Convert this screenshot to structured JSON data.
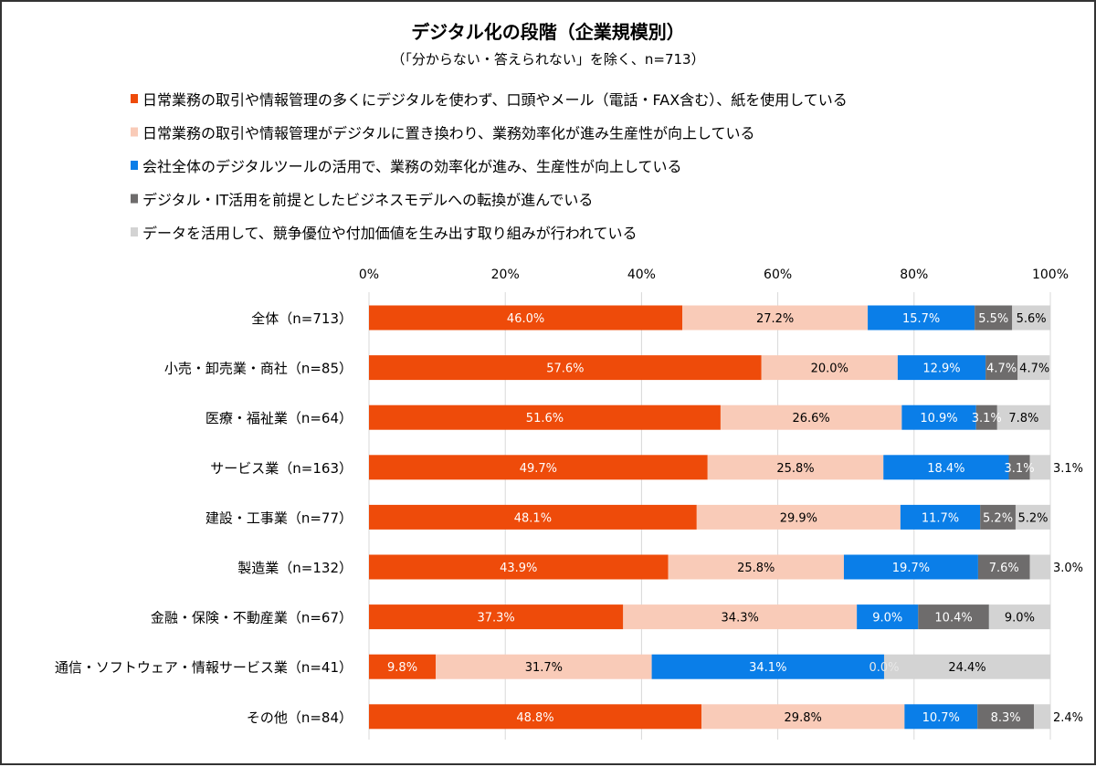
{
  "chart_data": {
    "type": "bar",
    "orientation": "horizontal",
    "stacked": "percent",
    "title": "デジタル化の段階（企業規模別）",
    "subtitle": "（「分からない・答えられない」を除く、n=713）",
    "xlim": [
      0,
      100
    ],
    "x_ticks": [
      "0%",
      "20%",
      "40%",
      "60%",
      "80%",
      "100%"
    ],
    "grid": true,
    "legend_position": "top",
    "categories": [
      "全体（n=713）",
      "小売・卸売業・商社（n=85）",
      "医療・福祉業（n=64）",
      "サービス業（n=163）",
      "建設・工事業（n=77）",
      "製造業（n=132）",
      "金融・保険・不動産業（n=67）",
      "通信・ソフトウェア・情報サービス業（n=41）",
      "その他（n=84）"
    ],
    "series": [
      {
        "name": "日常業務の取引や情報管理の多くにデジタルを使わず、口頭やメール（電話・FAX含む）、紙を使用している",
        "color": "#EE4B0A",
        "label_color": "#ffffff",
        "values": [
          46.0,
          57.6,
          51.6,
          49.7,
          48.1,
          43.9,
          37.3,
          9.8,
          48.8
        ]
      },
      {
        "name": "日常業務の取引や情報管理がデジタルに置き換わり、業務効率化が進み生産性が向上している",
        "color": "#F9CBB8",
        "label_color": "#000000",
        "values": [
          27.2,
          20.0,
          26.6,
          25.8,
          29.9,
          25.8,
          34.3,
          31.7,
          29.8
        ]
      },
      {
        "name": "会社全体のデジタルツールの活用で、業務の効率化が進み、生産性が向上している",
        "color": "#0A7EE8",
        "label_color": "#ffffff",
        "values": [
          15.7,
          12.9,
          10.9,
          18.4,
          11.7,
          19.7,
          9.0,
          34.1,
          10.7
        ]
      },
      {
        "name": "デジタル・IT活用を前提としたビジネスモデルへの転換が進んでいる",
        "color": "#6E6C6C",
        "label_color": "#ffffff",
        "values": [
          5.5,
          4.7,
          3.1,
          3.1,
          5.2,
          7.6,
          10.4,
          0.0,
          8.3
        ]
      },
      {
        "name": "データを活用して、競争優位や付加価値を生み出す取り組みが行われている",
        "color": "#D3D3D3",
        "label_color": "#000000",
        "values": [
          5.6,
          4.7,
          7.8,
          3.1,
          5.2,
          3.0,
          9.0,
          24.4,
          2.4
        ]
      }
    ]
  }
}
